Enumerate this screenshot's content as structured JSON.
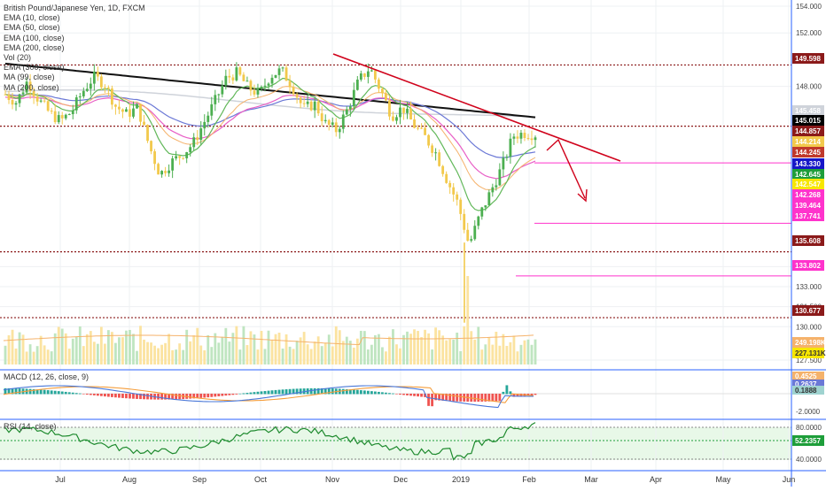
{
  "instrument": {
    "title": "British Pound/Japanese Yen, 1D, FXCM"
  },
  "legend": [
    "EMA (10, close)",
    "EMA (50, close)",
    "EMA (100, close)",
    "EMA (200, close)",
    "Vol (20)",
    "EMA (300, close)",
    "MA (99, close)",
    "MA (200, close)"
  ],
  "macd": {
    "label": "MACD (12, 26, close, 9)"
  },
  "rsi": {
    "label": "RSI (14, close)"
  },
  "colors": {
    "up": "#4caf50",
    "down": "#f2c94c",
    "black_ema": "#111111",
    "blue_ma": "#6b78d6",
    "pink_ma": "#e85fc6",
    "green_ema": "#62b85a",
    "orange_ema": "#f5b26b",
    "trend": "#d0021b",
    "maroon_level": "#8b1a1a",
    "magenta_level": "#ff33cc"
  },
  "chart_data": [
    {
      "type": "candlestick",
      "x_axis": {
        "labels": [
          "Jul",
          "Aug",
          "Sep",
          "Oct",
          "Nov",
          "Dec",
          "2019",
          "Feb",
          "Mar",
          "Apr",
          "May",
          "Jun"
        ]
      },
      "y_axis": {
        "ticks": [
          "154.000",
          "152.000",
          "148.000",
          "134.500",
          "133.000",
          "131.500",
          "130.000",
          "127.500"
        ],
        "ylim": [
          127.5,
          154.0
        ]
      },
      "close_path": [
        147.4,
        146.8,
        148.4,
        147.0,
        146.0,
        145.4,
        146.1,
        147.6,
        148.7,
        148.2,
        146.5,
        145.9,
        146.4,
        143.6,
        141.4,
        142.3,
        142.9,
        143.7,
        145.3,
        146.9,
        148.6,
        149.0,
        147.9,
        147.4,
        148.8,
        149.2,
        148.0,
        146.3,
        146.7,
        145.2,
        144.7,
        146.3,
        148.4,
        149.4,
        147.7,
        145.8,
        146.4,
        145.1,
        144.2,
        143.0,
        141.0,
        139.2,
        136.1,
        138.4,
        140.2,
        142.0,
        144.3,
        144.5,
        144.4
      ],
      "levels": [
        {
          "label": "149.598",
          "color": "#8b1a1a",
          "style": "dotted"
        },
        {
          "label": "145.015",
          "color": "#8b1a1a",
          "style": "dotted"
        },
        {
          "label": "135.608",
          "color": "#8b1a1a",
          "style": "dotted"
        },
        {
          "label": "130.677",
          "color": "#8b1a1a",
          "style": "dotted"
        },
        {
          "label": "142.268",
          "color": "#ff33cc",
          "style": "solid"
        },
        {
          "label": "137.741",
          "color": "#ff33cc",
          "style": "solid"
        },
        {
          "label": "133.802",
          "color": "#ff33cc",
          "style": "solid"
        }
      ],
      "price_tags": [
        {
          "label": "149.598",
          "bg": "#8b1a1a",
          "fg": "#ffffff"
        },
        {
          "label": "145.458",
          "bg": "#cfd3da",
          "fg": "#ffffff"
        },
        {
          "label": "145.015",
          "bg": "#000000",
          "fg": "#ffffff"
        },
        {
          "label": "144.857",
          "bg": "#8b1a1a",
          "fg": "#ffffff"
        },
        {
          "label": "144.214",
          "bg": "#f2c94c",
          "fg": "#ffffff"
        },
        {
          "label": "144.245",
          "bg": "#c0392b",
          "fg": "#ffffff"
        },
        {
          "label": "143.330",
          "bg": "#1616c8",
          "fg": "#ffffff"
        },
        {
          "label": "142.645",
          "bg": "#1e9e3a",
          "fg": "#ffffff"
        },
        {
          "label": "142.547",
          "bg": "#f7e600",
          "fg": "#ffffff"
        },
        {
          "label": "142.268",
          "bg": "#ff33cc",
          "fg": "#ffffff"
        },
        {
          "label": "139.464",
          "bg": "#ff33cc",
          "fg": "#ffffff"
        },
        {
          "label": "137.741",
          "bg": "#ff33cc",
          "fg": "#ffffff"
        },
        {
          "label": "135.608",
          "bg": "#8b1a1a",
          "fg": "#ffffff"
        },
        {
          "label": "133.802",
          "bg": "#ff33cc",
          "fg": "#ffffff"
        },
        {
          "label": "130.677",
          "bg": "#8b1a1a",
          "fg": "#ffffff"
        },
        {
          "label": "249.198K",
          "bg": "#f5b26b",
          "fg": "#ffffff"
        },
        {
          "label": "227.131K",
          "bg": "#f7e600",
          "fg": "#333333"
        }
      ]
    },
    {
      "type": "macd",
      "y_axis": {
        "ticks": [
          "-2.0000"
        ]
      },
      "price_tags": [
        {
          "label": "0.4525",
          "bg": "#f5b26b",
          "fg": "#ffffff"
        },
        {
          "label": "0.2637",
          "bg": "#6b78d6",
          "fg": "#ffffff"
        },
        {
          "label": "0.1888",
          "bg": "#9fd3d0",
          "fg": "#333333"
        }
      ]
    },
    {
      "type": "rsi",
      "y_axis": {
        "ticks": [
          "80.0000",
          "40.0000"
        ],
        "ylim": [
          0,
          100
        ]
      },
      "price_tags": [
        {
          "label": "52.2357",
          "bg": "#1e9e3a",
          "fg": "#ffffff"
        }
      ]
    }
  ]
}
